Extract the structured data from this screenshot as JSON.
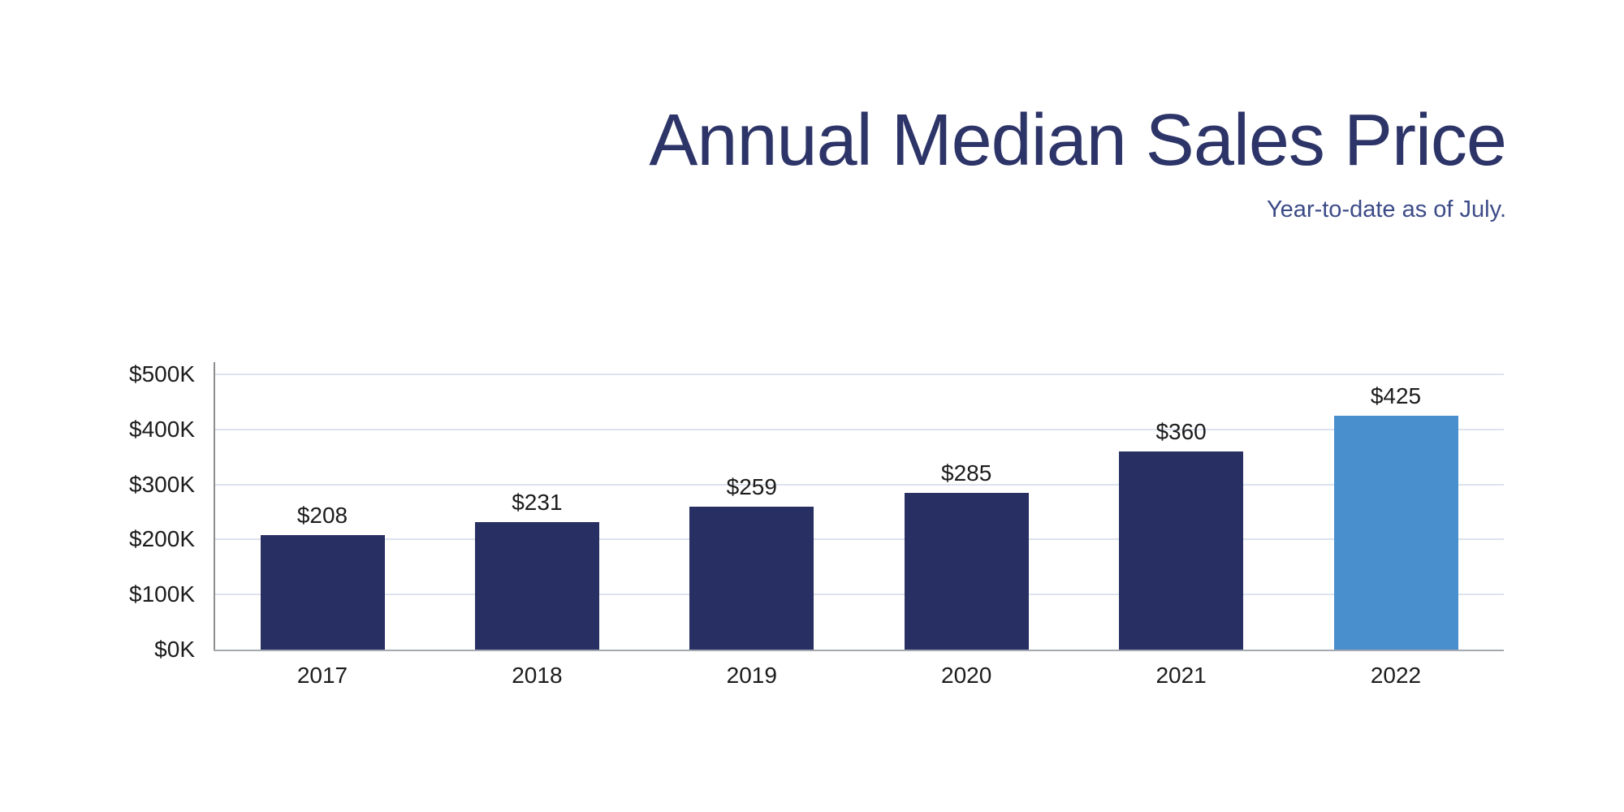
{
  "header": {
    "title": "Annual Median Sales Price",
    "subtitle": "Year-to-date as of July."
  },
  "chart_data": {
    "type": "bar",
    "title": "Annual Median Sales Price",
    "subtitle": "Year-to-date as of July.",
    "categories": [
      "2017",
      "2018",
      "2019",
      "2020",
      "2021",
      "2022"
    ],
    "values": [
      208,
      231,
      259,
      285,
      360,
      425
    ],
    "value_labels": [
      "$208",
      "$231",
      "$259",
      "$285",
      "$360",
      "$425"
    ],
    "value_unit": "thousands of dollars",
    "xlabel": "",
    "ylabel": "",
    "ylim": [
      0,
      500
    ],
    "y_ticks": [
      0,
      100,
      200,
      300,
      400,
      500
    ],
    "y_tick_labels": [
      "$0K",
      "$100K",
      "$200K",
      "$300K",
      "$400K",
      "$500K"
    ],
    "grid": true,
    "legend": false,
    "highlight_index": 5,
    "colors": {
      "bar_default": "#282f62",
      "bar_highlight": "#4a8fcd",
      "title_text": "#2d3468",
      "subtitle_text": "#3c4b87",
      "axis_text": "#1c1c1c",
      "gridline": "#dce3ee",
      "y_axis_line": "#8d8d8d",
      "baseline": "#a3a8b1",
      "background": "#ffffff"
    }
  }
}
